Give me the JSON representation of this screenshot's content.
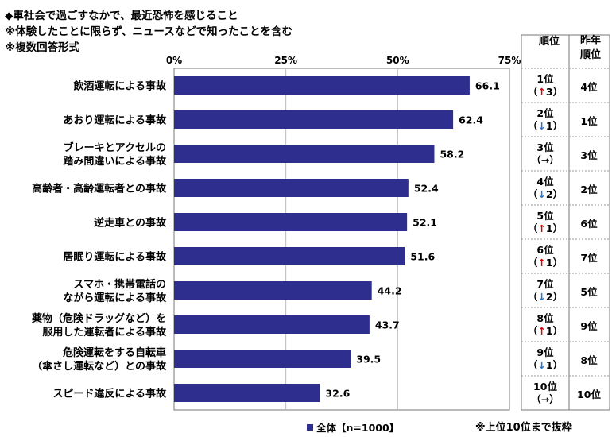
{
  "header": {
    "line1": "◆車社会で過ごすなかで、最近恐怖を感じること",
    "line2": "※体験したことに限らず、ニュースなどで知ったことを含む",
    "line3": "※複数回答形式"
  },
  "colors": {
    "bar": "#2e2e8f",
    "up": "#e00000",
    "down": "#1f77d4"
  },
  "chart_data": {
    "type": "bar",
    "orientation": "horizontal",
    "categories": [
      [
        "飲酒運転による事故"
      ],
      [
        "あおり運転による事故"
      ],
      [
        "ブレーキとアクセルの",
        "踏み間違いによる事故"
      ],
      [
        "高齢者・高齢運転者との事故"
      ],
      [
        "逆走車との事故"
      ],
      [
        "居眠り運転による事故"
      ],
      [
        "スマホ・携帯電話の",
        "ながら運転による事故"
      ],
      [
        "薬物（危険ドラッグなど）を",
        "服用した運転者による事故"
      ],
      [
        "危険運転をする自転車",
        "（傘さし運転など）との事故"
      ],
      [
        "スピード違反による事故"
      ]
    ],
    "series": [
      {
        "name": "全体【n=1000】",
        "values": [
          66.1,
          62.4,
          58.2,
          52.4,
          52.1,
          51.6,
          44.2,
          43.7,
          39.5,
          32.6
        ]
      }
    ],
    "value_labels": [
      "66.1",
      "62.4",
      "58.2",
      "52.4",
      "52.1",
      "51.6",
      "44.2",
      "43.7",
      "39.5",
      "32.6"
    ],
    "xlim": [
      0,
      75
    ],
    "ticks": [
      0,
      25,
      50,
      75
    ],
    "tick_labels": [
      "0%",
      "25%",
      "50%",
      "75%"
    ],
    "grid": true,
    "legend_position": "bottom"
  },
  "rank_table": {
    "rank_header": "順位",
    "prev_header": [
      "昨年",
      "順位"
    ],
    "rows": [
      {
        "rank": "1位",
        "paren_open": "（",
        "arrow": "↑",
        "change": "3",
        "paren_close": "）",
        "dir": "up",
        "prev": "4位"
      },
      {
        "rank": "2位",
        "paren_open": "（",
        "arrow": "↓",
        "change": "1",
        "paren_close": "）",
        "dir": "down",
        "prev": "1位"
      },
      {
        "rank": "3位",
        "paren_open": "（",
        "arrow": "→",
        "change": "",
        "paren_close": "）",
        "dir": "flat",
        "prev": "3位"
      },
      {
        "rank": "4位",
        "paren_open": "（",
        "arrow": "↓",
        "change": "2",
        "paren_close": "）",
        "dir": "down",
        "prev": "2位"
      },
      {
        "rank": "5位",
        "paren_open": "（",
        "arrow": "↑",
        "change": "1",
        "paren_close": "）",
        "dir": "up",
        "prev": "6位"
      },
      {
        "rank": "6位",
        "paren_open": "（",
        "arrow": "↑",
        "change": "1",
        "paren_close": "）",
        "dir": "up",
        "prev": "7位"
      },
      {
        "rank": "7位",
        "paren_open": "（",
        "arrow": "↓",
        "change": "2",
        "paren_close": "）",
        "dir": "down",
        "prev": "5位"
      },
      {
        "rank": "8位",
        "paren_open": "（",
        "arrow": "↑",
        "change": "1",
        "paren_close": "）",
        "dir": "up",
        "prev": "9位"
      },
      {
        "rank": "9位",
        "paren_open": "（",
        "arrow": "↓",
        "change": "1",
        "paren_close": "）",
        "dir": "down",
        "prev": "8位"
      },
      {
        "rank": "10位",
        "paren_open": "（",
        "arrow": "→",
        "change": "",
        "paren_close": "）",
        "dir": "flat",
        "prev": "10位"
      }
    ]
  },
  "legend": {
    "label": "全体【n=1000】"
  },
  "footnote": "※上位10位まで抜粋"
}
